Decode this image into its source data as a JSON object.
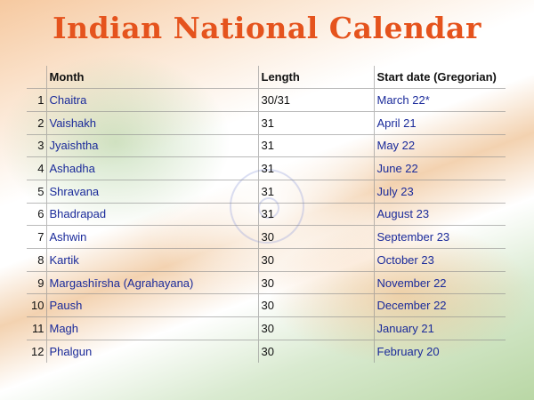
{
  "title": "Indian National Calendar",
  "colors": {
    "title": "#e5531d",
    "link": "#1a2a9a"
  },
  "headers": {
    "num": "",
    "month": "Month",
    "length": "Length",
    "start": "Start date (Gregorian)"
  },
  "rows": [
    {
      "num": "1",
      "month": "Chaitra",
      "length": "30/31",
      "start": "March 22*"
    },
    {
      "num": "2",
      "month": "Vaishakh",
      "length": "31",
      "start": "April 21"
    },
    {
      "num": "3",
      "month": "Jyaishtha",
      "length": "31",
      "start": "May 22"
    },
    {
      "num": "4",
      "month": "Ashadha",
      "length": "31",
      "start": "June 22"
    },
    {
      "num": "5",
      "month": "Shravana",
      "length": "31",
      "start": "July 23"
    },
    {
      "num": "6",
      "month": "Bhadrapad",
      "length": "31",
      "start": "August 23"
    },
    {
      "num": "7",
      "month": "Ashwin",
      "length": "30",
      "start": "September 23"
    },
    {
      "num": "8",
      "month": "Kartik",
      "length": "30",
      "start": "October 23"
    },
    {
      "num": "9",
      "month": "Margashīrsha (Agrahayana)",
      "length": "30",
      "start": "November 22"
    },
    {
      "num": "10",
      "month": "Paush",
      "length": "30",
      "start": "December 22"
    },
    {
      "num": "11",
      "month": "Magh",
      "length": "30",
      "start": "January 21"
    },
    {
      "num": "12",
      "month": "Phalgun",
      "length": "30",
      "start": "February 20"
    }
  ]
}
